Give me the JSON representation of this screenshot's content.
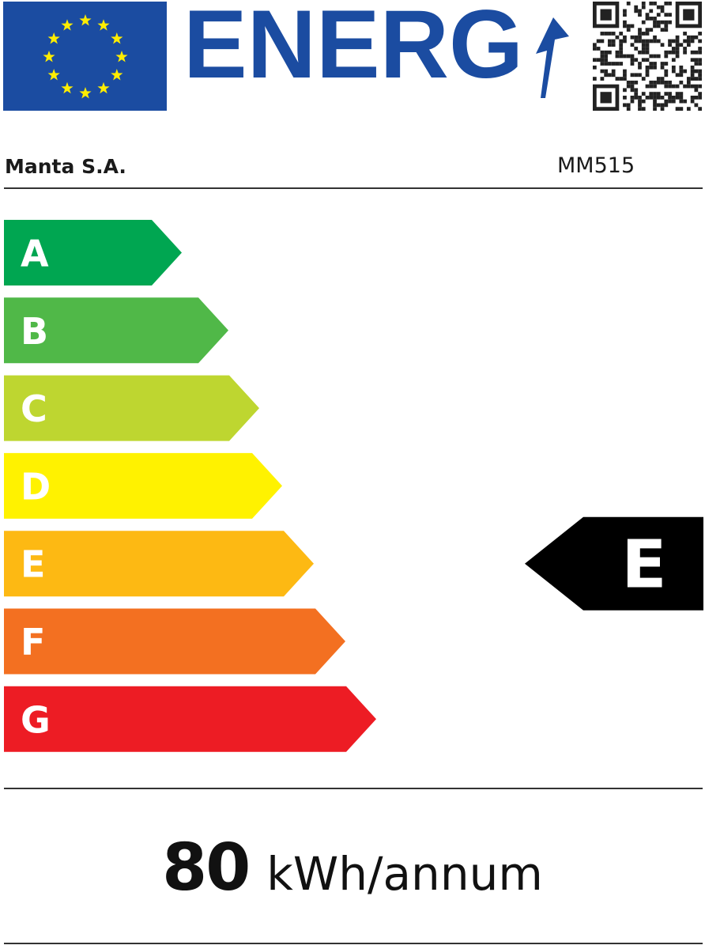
{
  "header": {
    "logo_text": "ENERG",
    "flag_icon": "eu-flag-icon",
    "qr_icon": "qr-code-icon",
    "colors": {
      "blue": "#1b4ca1",
      "star": "#ffed00"
    }
  },
  "supplier": "Manta S.A.",
  "model": "MM515",
  "scale": {
    "classes": [
      {
        "label": "A",
        "color": "#00a651"
      },
      {
        "label": "B",
        "color": "#50b848"
      },
      {
        "label": "C",
        "color": "#bed630"
      },
      {
        "label": "D",
        "color": "#fff200"
      },
      {
        "label": "E",
        "color": "#fdb913"
      },
      {
        "label": "F",
        "color": "#f37021"
      },
      {
        "label": "G",
        "color": "#ed1c24"
      }
    ],
    "rating": "E",
    "rating_color": "#000000"
  },
  "consumption": {
    "value": "80",
    "unit": "kWh/annum"
  }
}
